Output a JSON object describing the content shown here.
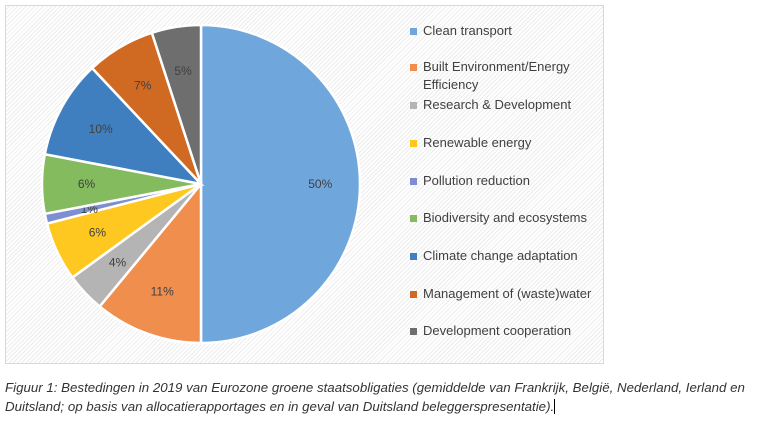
{
  "chart_data": {
    "type": "pie",
    "title": "",
    "categories": [
      "Clean transport",
      "Built Environment/Energy Efficiency",
      "Research & Development",
      "Renewable energy",
      "Pollution reduction",
      "Biodiversity and ecosystems",
      "Climate change adaptation",
      "Management of (waste)water",
      "Development cooperation"
    ],
    "values": [
      50,
      11,
      4,
      6,
      1,
      6,
      10,
      7,
      5
    ],
    "labels": [
      "50%",
      "11%",
      "4%",
      "6%",
      "1%",
      "6%",
      "10%",
      "7%",
      "5%"
    ],
    "colors": [
      "#6fa6dc",
      "#f08e4e",
      "#b4b4b4",
      "#ffc820",
      "#7d8fd0",
      "#84bb5e",
      "#3f7fc0",
      "#d06a22",
      "#6e6e6e"
    ],
    "legend_position": "right"
  },
  "caption": "Figuur 1: Bestedingen in 2019 van Eurozone groene staatsobligaties (gemiddelde van Frankrijk, België, Nederland, Ierland en Duitsland; op basis van allocatierapportages en in geval van Duitsland beleggerspresentatie)."
}
